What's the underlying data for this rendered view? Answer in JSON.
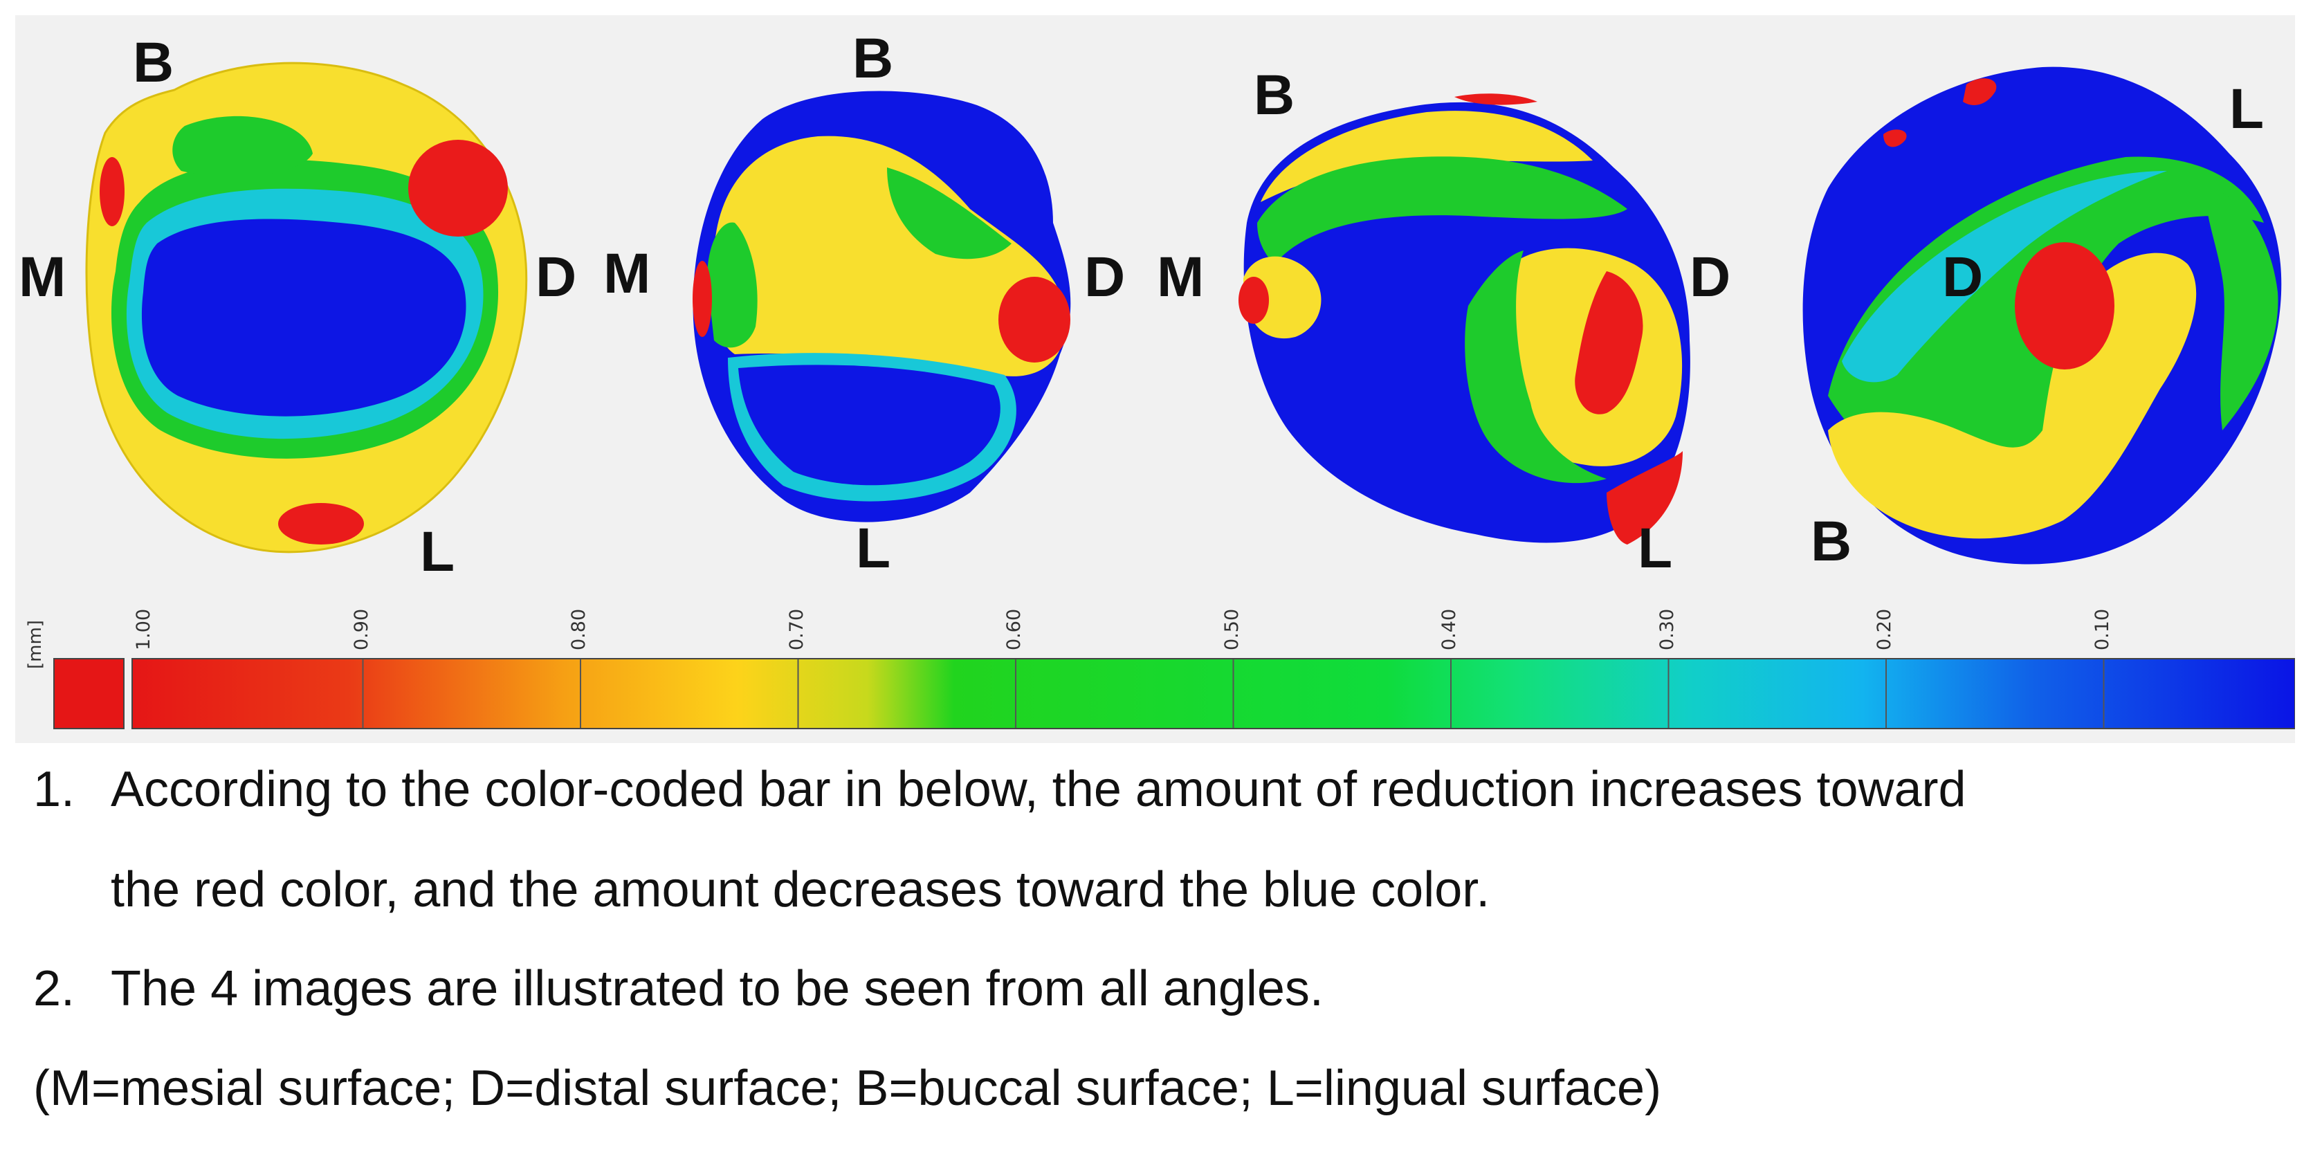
{
  "views": [
    {
      "labels": {
        "B": "B",
        "M": "M",
        "D": "D",
        "L": "L"
      }
    },
    {
      "labels": {
        "B": "B",
        "M": "M",
        "D": "D",
        "L": "L"
      }
    },
    {
      "labels": {
        "B": "B",
        "M": "M",
        "D": "D",
        "L": "L"
      }
    },
    {
      "labels": {
        "L": "L",
        "D": "D",
        "B": "B"
      }
    }
  ],
  "scale": {
    "unit": "[mm]",
    "ticks": [
      "1.00",
      "0.90",
      "0.80",
      "0.70",
      "0.60",
      "0.50",
      "0.40",
      "0.30",
      "0.20",
      "0.10"
    ],
    "colors": {
      "red": "#e41a1a",
      "orange": "#f79a10",
      "yellow": "#fbd81a",
      "green": "#12d81b",
      "cyan": "#11c9d6",
      "blue": "#0a14e6"
    }
  },
  "caption": {
    "item1_num": "1.",
    "item1_line1": "According to the color-coded bar in below, the amount of reduction increases toward",
    "item1_line2": "the red color, and the amount decreases toward the blue color.",
    "item2_num": "2.",
    "item2_text": "The 4 images are illustrated to be seen from all angles.",
    "legend": "(M=mesial surface; D=distal surface; B=buccal surface; L=lingual surface)"
  }
}
